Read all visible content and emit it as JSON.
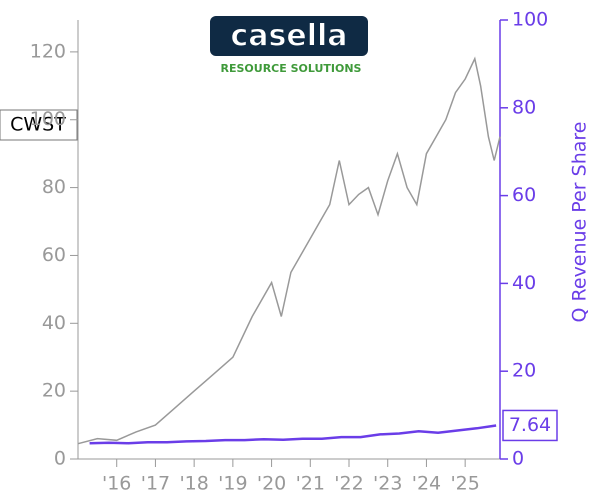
{
  "logo": {
    "name": "casella",
    "tagline": "RESOURCE SOLUTIONS"
  },
  "chart_data": {
    "type": "line",
    "ticker": "CWST",
    "y2label": "Q Revenue Per Share",
    "xlim": [
      2015,
      2025.9
    ],
    "ylim": [
      0,
      129.4
    ],
    "y2lim": [
      0,
      100
    ],
    "xticks": [
      {
        "value": 2016,
        "label": "'16"
      },
      {
        "value": 2017,
        "label": "'17"
      },
      {
        "value": 2018,
        "label": "'18"
      },
      {
        "value": 2019,
        "label": "'19"
      },
      {
        "value": 2020,
        "label": "'20"
      },
      {
        "value": 2021,
        "label": "'21"
      },
      {
        "value": 2022,
        "label": "'22"
      },
      {
        "value": 2023,
        "label": "'23"
      },
      {
        "value": 2024,
        "label": "'24"
      },
      {
        "value": 2025,
        "label": "'25"
      }
    ],
    "yticks": [
      0,
      20,
      40,
      60,
      80,
      100,
      120
    ],
    "y2ticks": [
      0,
      20,
      40,
      60,
      80,
      100
    ],
    "series": [
      {
        "color": "#999999",
        "axis": "y",
        "x": [
          2015,
          2015.5,
          2016,
          2016.5,
          2017,
          2017.5,
          2018,
          2018.5,
          2019,
          2019.5,
          2020,
          2020.25,
          2020.5,
          2021,
          2021.25,
          2021.5,
          2021.75,
          2022,
          2022.25,
          2022.5,
          2022.75,
          2023,
          2023.25,
          2023.5,
          2023.75,
          2024,
          2024.25,
          2024.5,
          2024.75,
          2025,
          2025.25,
          2025.4,
          2025.6,
          2025.75,
          2025.9
        ],
        "values": [
          4.5,
          6,
          5.5,
          8,
          10,
          15,
          20,
          25,
          30,
          42,
          52,
          42,
          55,
          65,
          70,
          75,
          88,
          75,
          78,
          80,
          72,
          82,
          90,
          80,
          75,
          90,
          95,
          100,
          108,
          112,
          118,
          110,
          95,
          88,
          95
        ]
      },
      {
        "color": "#6a3de8",
        "axis": "y2",
        "x": [
          2015.3,
          2015.8,
          2016.3,
          2016.8,
          2017.3,
          2017.8,
          2018.3,
          2018.8,
          2019.3,
          2019.8,
          2020.3,
          2020.8,
          2021.3,
          2021.8,
          2022.3,
          2022.8,
          2023.3,
          2023.8,
          2024.3,
          2024.8,
          2025.3,
          2025.8
        ],
        "values": [
          3.6,
          3.7,
          3.6,
          3.8,
          3.8,
          4.0,
          4.1,
          4.3,
          4.3,
          4.5,
          4.4,
          4.6,
          4.6,
          5.0,
          5.0,
          5.6,
          5.8,
          6.3,
          6.0,
          6.5,
          7.0,
          7.64
        ]
      }
    ]
  }
}
